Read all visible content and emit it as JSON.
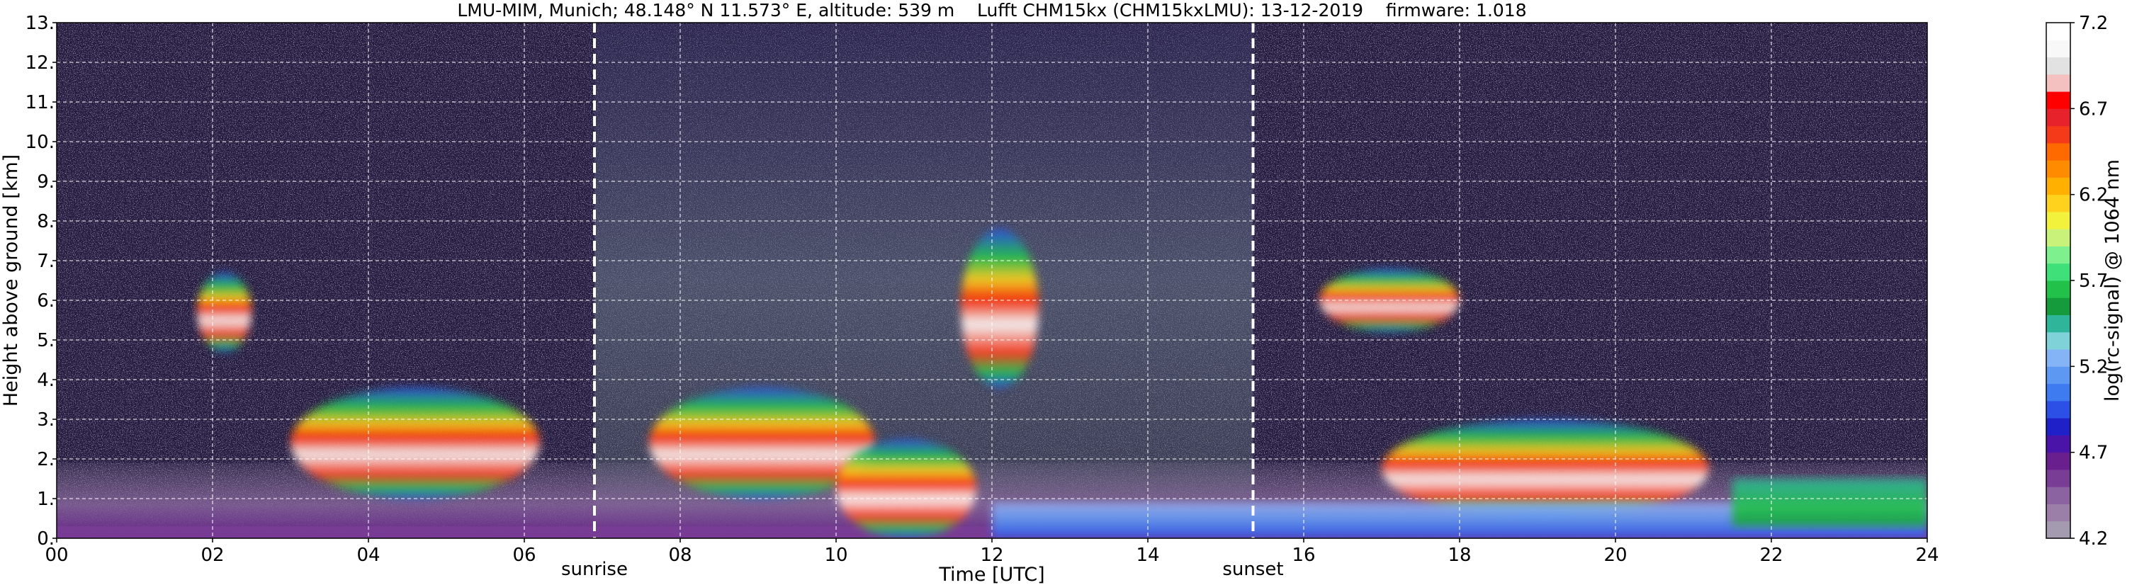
{
  "chart_data": {
    "type": "heatmap",
    "title": "LMU-MIM, Munich; 48.148° N 11.573° E, altitude: 539 m    Lufft CHM15kx (CHM15kxLMU): 13-12-2019    firmware: 1.018",
    "xlabel": "Time [UTC]",
    "ylabel": "Height above ground [km]",
    "xlim": [
      0,
      24
    ],
    "ylim": [
      0,
      13
    ],
    "x_ticks": [
      "00",
      "02",
      "04",
      "06",
      "08",
      "10",
      "12",
      "14",
      "16",
      "18",
      "20",
      "22",
      "24"
    ],
    "y_ticks": [
      "0.",
      "1.",
      "2.",
      "3.",
      "4.",
      "5.",
      "6.",
      "7.",
      "8.",
      "9.",
      "10.",
      "11.",
      "12.",
      "13."
    ],
    "grid": true,
    "markers": [
      {
        "label": "sunrise",
        "x": 6.9
      },
      {
        "label": "sunset",
        "x": 15.35
      }
    ],
    "colorbar": {
      "label": "log(rc-signal) @ 1064 nm",
      "min": 4.2,
      "max": 7.2,
      "ticks": [
        "4.2",
        "4.7",
        "5.2",
        "5.7",
        "6.2",
        "6.7",
        "7.2"
      ],
      "colors": [
        "#a59bb0",
        "#9c7fa8",
        "#8b63a0",
        "#7a3d96",
        "#6a1f8e",
        "#4a14a8",
        "#2020c8",
        "#2c4fe6",
        "#3f7bf0",
        "#5d98f2",
        "#84b4f5",
        "#7fd3d8",
        "#2fb59a",
        "#159a3c",
        "#22c24a",
        "#3fe07a",
        "#7ef08e",
        "#c9f27a",
        "#f2f23c",
        "#ffd21e",
        "#ffb000",
        "#ff8c00",
        "#ff6a00",
        "#f53a1a",
        "#e8222a",
        "#ff0000",
        "#f4c0c0",
        "#e2e2e2",
        "#f8f8f8",
        "#ffffff"
      ]
    },
    "layers": [
      {
        "name": "boundary layer",
        "x": [
          0,
          24
        ],
        "h": [
          0,
          1.9
        ],
        "level": 4.35
      },
      {
        "name": "surface layer",
        "x": [
          0,
          24
        ],
        "h": [
          0,
          0.3
        ],
        "level": 4.55
      },
      {
        "name": "cloud",
        "x": [
          3.0,
          6.2
        ],
        "h": [
          1.0,
          3.8
        ],
        "level": 7.0
      },
      {
        "name": "cloud",
        "x": [
          1.8,
          2.5
        ],
        "h": [
          4.7,
          6.7
        ],
        "level": 6.8
      },
      {
        "name": "cloud",
        "x": [
          7.6,
          10.5
        ],
        "h": [
          1.0,
          3.8
        ],
        "level": 7.0
      },
      {
        "name": "cloud",
        "x": [
          10.0,
          11.8
        ],
        "h": [
          0.0,
          2.5
        ],
        "level": 7.0
      },
      {
        "name": "cloud",
        "x": [
          11.6,
          12.6
        ],
        "h": [
          3.8,
          7.8
        ],
        "level": 6.6
      },
      {
        "name": "cloud",
        "x": [
          16.2,
          18.0
        ],
        "h": [
          5.2,
          6.8
        ],
        "level": 6.8
      },
      {
        "name": "cloud",
        "x": [
          17.0,
          21.2
        ],
        "h": [
          0.5,
          3.0
        ],
        "level": 6.6
      },
      {
        "name": "low-level backscatter",
        "x": [
          12.0,
          24.0
        ],
        "h": [
          0.0,
          0.9
        ],
        "level": 4.8
      },
      {
        "name": "aerosol layer",
        "x": [
          21.5,
          24.0
        ],
        "h": [
          0.3,
          1.5
        ],
        "level": 5.3
      }
    ]
  }
}
